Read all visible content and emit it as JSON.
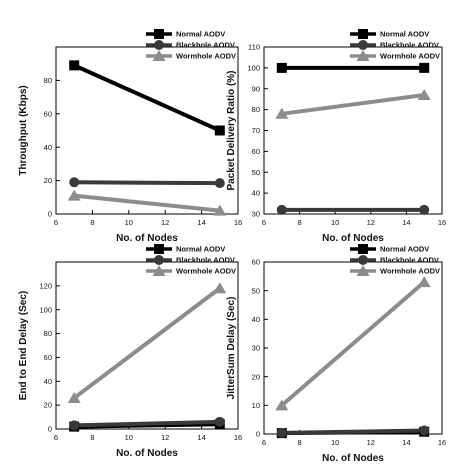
{
  "chart_data": [
    {
      "type": "line",
      "xlabel": "No. of Nodes",
      "ylabel": "Throughput (Kbps)",
      "xlim": [
        6,
        16
      ],
      "ylim": [
        0,
        100
      ],
      "xticks": [
        6,
        8,
        10,
        12,
        14,
        16
      ],
      "yticks": [
        0,
        20,
        40,
        60,
        80
      ],
      "legend_position": "top-right",
      "x": [
        7,
        15
      ],
      "series": [
        {
          "name": "Normal AODV",
          "values": [
            89,
            50
          ],
          "color": "#000000",
          "marker": "square"
        },
        {
          "name": "Blackhole AODV",
          "values": [
            19,
            18.5
          ],
          "color": "#3a3a3a",
          "marker": "circle"
        },
        {
          "name": "Wormhole AODV",
          "values": [
            11,
            2
          ],
          "color": "#8c8c8c",
          "marker": "triangle"
        }
      ]
    },
    {
      "type": "line",
      "xlabel": "No. of Nodes",
      "ylabel": "Packet Delivery Ratio (%)",
      "xlim": [
        6,
        16
      ],
      "ylim": [
        30,
        110
      ],
      "xticks": [
        6,
        8,
        10,
        12,
        14,
        16
      ],
      "yticks": [
        30,
        40,
        50,
        60,
        70,
        80,
        90,
        100,
        110
      ],
      "legend_position": "top-right",
      "x": [
        7,
        15
      ],
      "series": [
        {
          "name": "Normal AODV",
          "values": [
            100,
            100
          ],
          "color": "#000000",
          "marker": "square"
        },
        {
          "name": "Blackhole AODV",
          "values": [
            32,
            32
          ],
          "color": "#3a3a3a",
          "marker": "circle"
        },
        {
          "name": "Wormhole AODV",
          "values": [
            78,
            87
          ],
          "color": "#8c8c8c",
          "marker": "triangle"
        }
      ]
    },
    {
      "type": "line",
      "xlabel": "No. of Nodes",
      "ylabel": "End to End Delay (Sec)",
      "xlim": [
        6,
        16
      ],
      "ylim": [
        0,
        140
      ],
      "xticks": [
        6,
        8,
        10,
        12,
        14,
        16
      ],
      "yticks": [
        0,
        20,
        40,
        60,
        80,
        100,
        120
      ],
      "legend_position": "top-right",
      "x": [
        7,
        15
      ],
      "series": [
        {
          "name": "Normal AODV",
          "values": [
            2,
            4
          ],
          "color": "#000000",
          "marker": "square"
        },
        {
          "name": "Blackhole AODV",
          "values": [
            3,
            6
          ],
          "color": "#3a3a3a",
          "marker": "circle"
        },
        {
          "name": "Wormhole AODV",
          "values": [
            26,
            118
          ],
          "color": "#8c8c8c",
          "marker": "triangle"
        }
      ]
    },
    {
      "type": "line",
      "xlabel": "No. of Nodes",
      "ylabel": "JitterSum Delay (Sec)",
      "xlim": [
        6,
        16
      ],
      "ylim": [
        0,
        60
      ],
      "xticks": [
        6,
        8,
        10,
        12,
        14,
        16
      ],
      "yticks": [
        0,
        10,
        20,
        30,
        40,
        50,
        60
      ],
      "legend_position": "top-right",
      "x": [
        7,
        15
      ],
      "series": [
        {
          "name": "Normal AODV",
          "values": [
            0.3,
            0.8
          ],
          "color": "#000000",
          "marker": "square"
        },
        {
          "name": "Blackhole AODV",
          "values": [
            0.4,
            1.2
          ],
          "color": "#3a3a3a",
          "marker": "circle"
        },
        {
          "name": "Wormhole AODV",
          "values": [
            10,
            53
          ],
          "color": "#8c8c8c",
          "marker": "triangle"
        }
      ]
    }
  ]
}
